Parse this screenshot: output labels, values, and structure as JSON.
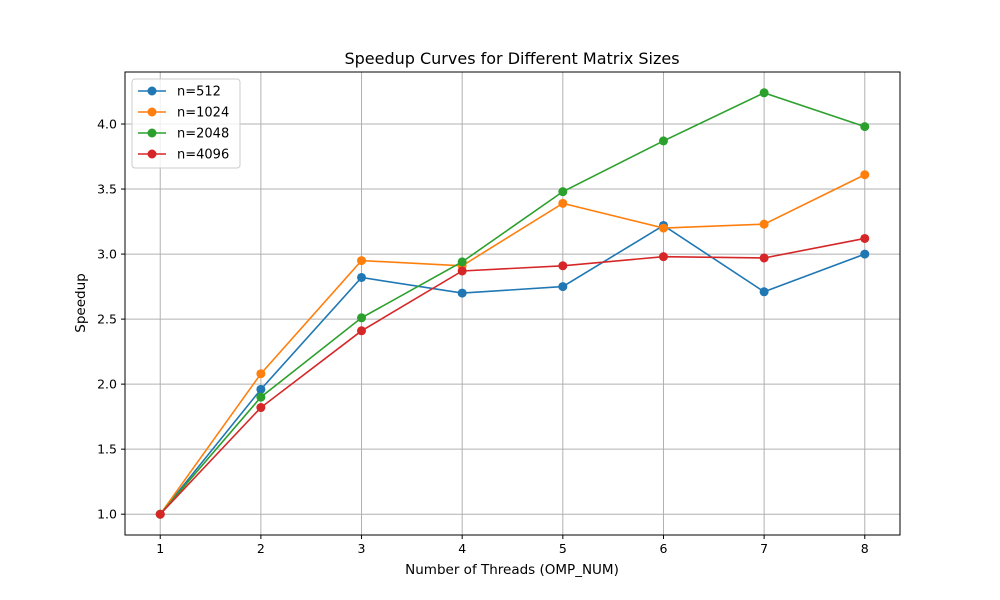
{
  "chart_data": {
    "type": "line",
    "title": "Speedup Curves for Different Matrix Sizes",
    "xlabel": "Number of Threads (OMP_NUM)",
    "ylabel": "Speedup",
    "x": [
      1,
      2,
      3,
      4,
      5,
      6,
      7,
      8
    ],
    "xticks": [
      "1",
      "2",
      "3",
      "4",
      "5",
      "6",
      "7",
      "8"
    ],
    "yticks": [
      "1.0",
      "1.5",
      "2.0",
      "2.5",
      "3.0",
      "3.5",
      "4.0"
    ],
    "xlim": [
      0.65,
      8.35
    ],
    "ylim": [
      0.84,
      4.4
    ],
    "grid": true,
    "legend_position": "top-left",
    "series": [
      {
        "name": "n=512",
        "color": "#1f77b4",
        "values": [
          1.0,
          1.96,
          2.82,
          2.7,
          2.75,
          3.22,
          2.71,
          3.0
        ]
      },
      {
        "name": "n=1024",
        "color": "#ff7f0e",
        "values": [
          1.0,
          2.08,
          2.95,
          2.91,
          3.39,
          3.2,
          3.23,
          3.61
        ]
      },
      {
        "name": "n=2048",
        "color": "#2ca02c",
        "values": [
          1.0,
          1.9,
          2.51,
          2.94,
          3.48,
          3.87,
          4.24,
          3.98
        ]
      },
      {
        "name": "n=4096",
        "color": "#d62728",
        "values": [
          1.0,
          1.82,
          2.41,
          2.87,
          2.91,
          2.98,
          2.97,
          3.12
        ]
      }
    ]
  }
}
